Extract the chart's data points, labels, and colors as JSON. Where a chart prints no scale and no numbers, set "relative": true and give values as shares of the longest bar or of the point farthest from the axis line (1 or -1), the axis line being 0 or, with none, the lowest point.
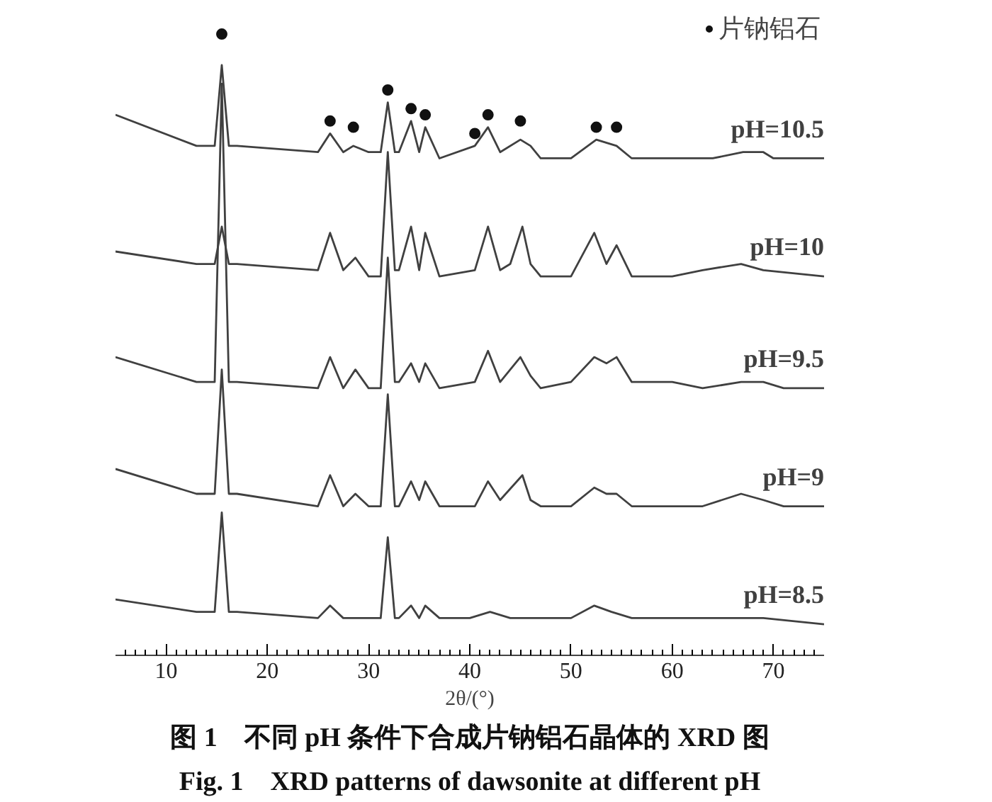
{
  "chart_data": {
    "type": "line",
    "relative": true,
    "title": "图 1　不同 pH 条件下合成片钠铝石晶体的 XRD 图",
    "subtitle": "Fig. 1　XRD patterns of dawsonite at different pH",
    "xlabel": "2θ/(°)",
    "xlim": [
      5,
      75
    ],
    "xticks": [
      10,
      20,
      30,
      40,
      50,
      60,
      70,
      {
        "value": 6,
        "label": null
      },
      {
        "value": 7,
        "label": null
      },
      {
        "value": 8,
        "label": null
      },
      {
        "value": 9,
        "label": null
      },
      {
        "value": 11,
        "label": null
      },
      {
        "value": 12,
        "label": null
      },
      {
        "value": 13,
        "label": null
      },
      {
        "value": 14,
        "label": null
      },
      {
        "value": 15,
        "label": null
      },
      {
        "value": 16,
        "label": null
      },
      {
        "value": 17,
        "label": null
      },
      {
        "value": 18,
        "label": null
      },
      {
        "value": 19,
        "label": null
      },
      {
        "value": 21,
        "label": null
      },
      {
        "value": 22,
        "label": null
      },
      {
        "value": 23,
        "label": null
      },
      {
        "value": 24,
        "label": null
      },
      {
        "value": 25,
        "label": null
      },
      {
        "value": 26,
        "label": null
      },
      {
        "value": 27,
        "label": null
      },
      {
        "value": 28,
        "label": null
      },
      {
        "value": 29,
        "label": null
      },
      {
        "value": 31,
        "label": null
      },
      {
        "value": 32,
        "label": null
      },
      {
        "value": 33,
        "label": null
      },
      {
        "value": 34,
        "label": null
      },
      {
        "value": 35,
        "label": null
      },
      {
        "value": 36,
        "label": null
      },
      {
        "value": 37,
        "label": null
      },
      {
        "value": 38,
        "label": null
      },
      {
        "value": 39,
        "label": null
      },
      {
        "value": 41,
        "label": null
      },
      {
        "value": 42,
        "label": null
      },
      {
        "value": 43,
        "label": null
      },
      {
        "value": 44,
        "label": null
      },
      {
        "value": 45,
        "label": null
      },
      {
        "value": 46,
        "label": null
      },
      {
        "value": 47,
        "label": null
      },
      {
        "value": 48,
        "label": null
      },
      {
        "value": 49,
        "label": null
      },
      {
        "value": 51,
        "label": null
      },
      {
        "value": 52,
        "label": null
      },
      {
        "value": 53,
        "label": null
      },
      {
        "value": 54,
        "label": null
      },
      {
        "value": 55,
        "label": null
      },
      {
        "value": 56,
        "label": null
      },
      {
        "value": 57,
        "label": null
      },
      {
        "value": 58,
        "label": null
      },
      {
        "value": 59,
        "label": null
      },
      {
        "value": 61,
        "label": null
      },
      {
        "value": 62,
        "label": null
      },
      {
        "value": 63,
        "label": null
      },
      {
        "value": 64,
        "label": null
      },
      {
        "value": 65,
        "label": null
      },
      {
        "value": 66,
        "label": null
      },
      {
        "value": 67,
        "label": null
      },
      {
        "value": 68,
        "label": null
      },
      {
        "value": 69,
        "label": null
      },
      {
        "value": 71,
        "label": null
      },
      {
        "value": 72,
        "label": null
      },
      {
        "value": 73,
        "label": null
      },
      {
        "value": 74,
        "label": null
      }
    ],
    "legend": "top right",
    "tick_labels": "x",
    "series": [
      {
        "name": "pH=10.5",
        "color": "#404040",
        "x": [
          5,
          13,
          14.8,
          15.5,
          16.2,
          17,
          25,
          26.2,
          27.5,
          28.5,
          30,
          31.2,
          31.9,
          32.6,
          33,
          34.2,
          35,
          35.6,
          37,
          40.5,
          41.8,
          43,
          45,
          46,
          47,
          50,
          52.5,
          54.5,
          56,
          60,
          62,
          64,
          67,
          69,
          70,
          75
        ],
        "values": [
          0.87,
          0.82,
          0.82,
          0.95,
          0.82,
          0.82,
          0.81,
          0.84,
          0.81,
          0.82,
          0.81,
          0.81,
          0.89,
          0.81,
          0.81,
          0.86,
          0.81,
          0.85,
          0.8,
          0.82,
          0.85,
          0.81,
          0.83,
          0.82,
          0.8,
          0.8,
          0.83,
          0.82,
          0.8,
          0.8,
          0.8,
          0.8,
          0.81,
          0.81,
          0.8,
          0.8
        ]
      },
      {
        "name": "pH=10",
        "color": "#404040",
        "x": [
          5,
          13,
          14.8,
          15.5,
          16.2,
          17,
          25,
          26.2,
          27.5,
          28.7,
          30,
          31.2,
          31.9,
          32.6,
          33,
          34.2,
          35,
          35.6,
          37,
          40.5,
          41.8,
          43,
          44,
          45.2,
          46,
          47,
          50,
          52.3,
          53.5,
          54.5,
          56,
          60,
          63,
          66.8,
          69,
          75
        ],
        "values": [
          0.65,
          0.63,
          0.63,
          0.69,
          0.63,
          0.63,
          0.62,
          0.68,
          0.62,
          0.64,
          0.61,
          0.61,
          0.81,
          0.62,
          0.62,
          0.69,
          0.62,
          0.68,
          0.61,
          0.62,
          0.69,
          0.62,
          0.63,
          0.69,
          0.63,
          0.61,
          0.61,
          0.68,
          0.63,
          0.66,
          0.61,
          0.61,
          0.62,
          0.63,
          0.62,
          0.61
        ]
      },
      {
        "name": "pH=9.5",
        "color": "#404040",
        "x": [
          5,
          13,
          14.8,
          15.5,
          16.2,
          17,
          25,
          26.2,
          27.5,
          28.7,
          30,
          31.2,
          31.9,
          32.6,
          33,
          34.2,
          35,
          35.6,
          37,
          40.5,
          41.8,
          43,
          45,
          46,
          47,
          50,
          52.3,
          53.5,
          54.5,
          56,
          60,
          63,
          66.8,
          69,
          71,
          75
        ],
        "values": [
          0.48,
          0.44,
          0.44,
          0.92,
          0.44,
          0.44,
          0.43,
          0.48,
          0.43,
          0.46,
          0.43,
          0.43,
          0.64,
          0.44,
          0.44,
          0.47,
          0.44,
          0.47,
          0.43,
          0.44,
          0.49,
          0.44,
          0.48,
          0.45,
          0.43,
          0.44,
          0.48,
          0.47,
          0.48,
          0.44,
          0.44,
          0.43,
          0.44,
          0.44,
          0.43,
          0.43
        ]
      },
      {
        "name": "pH=9",
        "color": "#404040",
        "x": [
          5,
          13,
          14.8,
          15.5,
          16.2,
          17,
          25,
          26.2,
          27.5,
          28.7,
          30,
          31.2,
          31.9,
          32.6,
          33,
          34.2,
          35,
          35.6,
          37,
          40.5,
          41.8,
          43,
          45.2,
          46,
          47,
          50,
          52.3,
          53.5,
          54.5,
          56,
          60,
          63,
          66.8,
          69,
          71,
          75
        ],
        "values": [
          0.3,
          0.26,
          0.26,
          0.46,
          0.26,
          0.26,
          0.24,
          0.29,
          0.24,
          0.26,
          0.24,
          0.24,
          0.42,
          0.24,
          0.24,
          0.28,
          0.25,
          0.28,
          0.24,
          0.24,
          0.28,
          0.25,
          0.29,
          0.25,
          0.24,
          0.24,
          0.27,
          0.26,
          0.26,
          0.24,
          0.24,
          0.24,
          0.26,
          0.25,
          0.24,
          0.24
        ]
      },
      {
        "name": "pH=8.5",
        "color": "#404040",
        "x": [
          5,
          13,
          14.8,
          15.5,
          16.2,
          17,
          25,
          26.2,
          27.5,
          31.2,
          31.9,
          32.6,
          33,
          34.2,
          35,
          35.6,
          37,
          40,
          42,
          44,
          50,
          52.3,
          54,
          56,
          60,
          65,
          69,
          75
        ],
        "values": [
          0.09,
          0.07,
          0.07,
          0.23,
          0.07,
          0.07,
          0.06,
          0.08,
          0.06,
          0.06,
          0.19,
          0.06,
          0.06,
          0.08,
          0.06,
          0.08,
          0.06,
          0.06,
          0.07,
          0.06,
          0.06,
          0.08,
          0.07,
          0.06,
          0.06,
          0.06,
          0.06,
          0.05
        ]
      },
      {
        "name": "片钠铝石",
        "type": "scatter",
        "marker": "circle",
        "color": "#111111",
        "x": [
          15.5,
          26.2,
          28.5,
          31.9,
          34.2,
          35.6,
          40.5,
          41.8,
          45,
          52.5,
          54.5
        ],
        "values": [
          1.0,
          0.86,
          0.85,
          0.91,
          0.88,
          0.87,
          0.84,
          0.87,
          0.86,
          0.85,
          0.85
        ]
      }
    ]
  }
}
